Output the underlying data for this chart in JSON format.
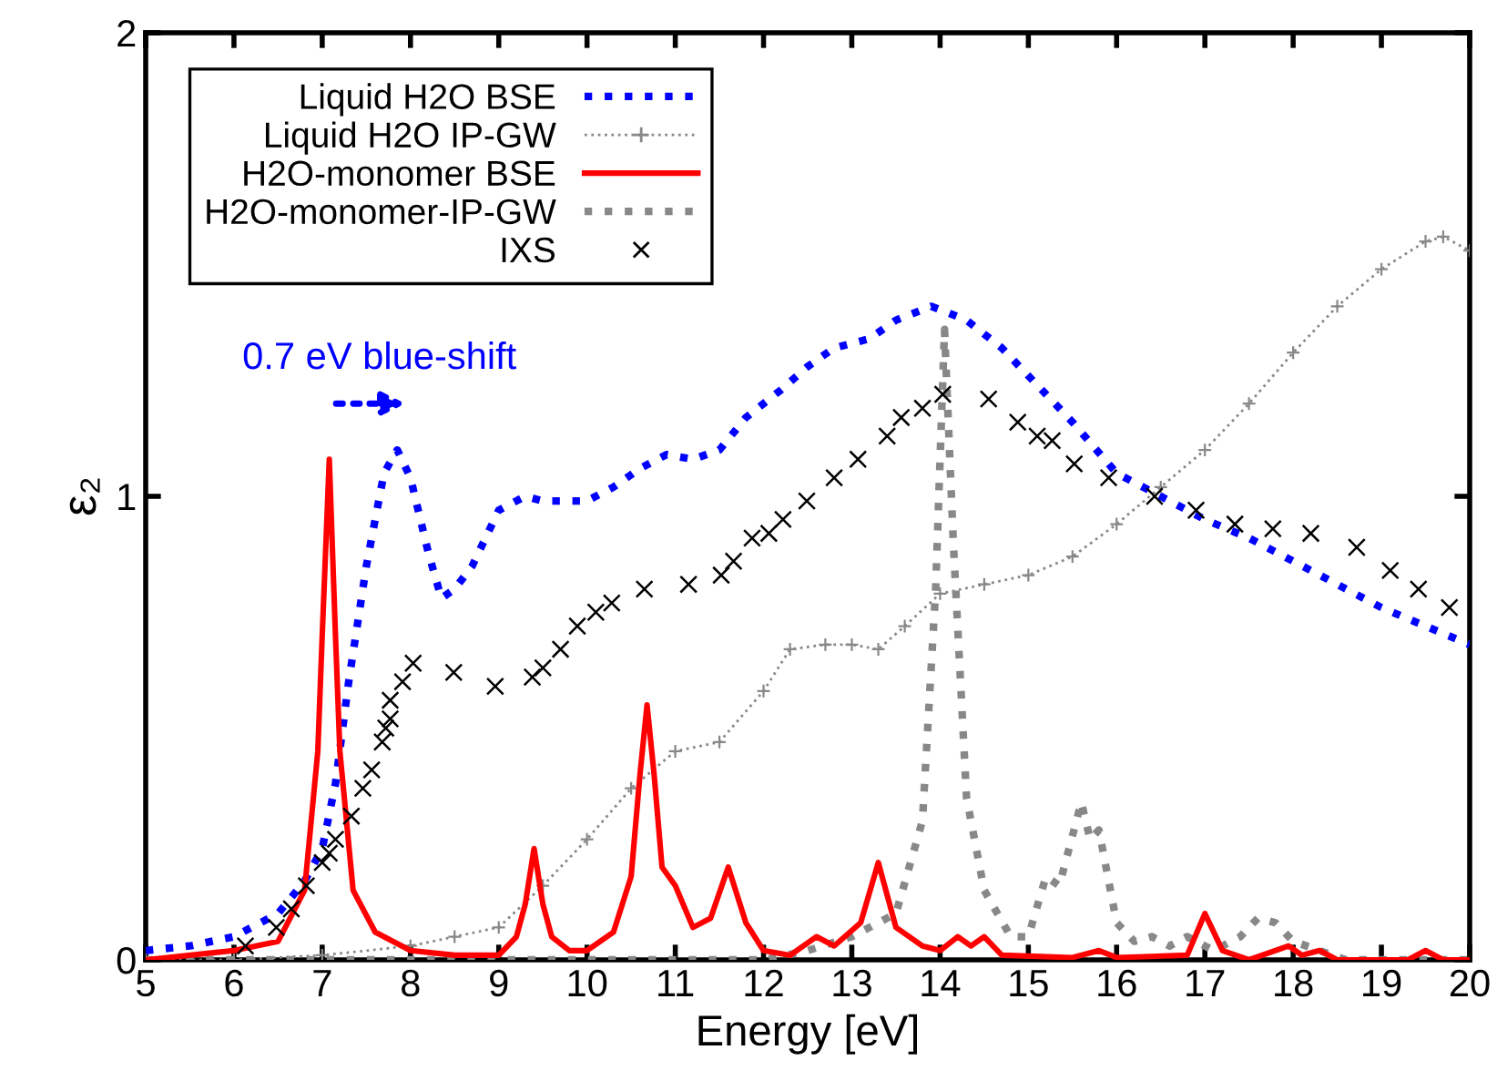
{
  "chart_data": {
    "type": "line",
    "xlabel": "Energy [eV]",
    "ylabel": "ε₂",
    "xlim": [
      5,
      20
    ],
    "xticks": [
      5,
      6,
      7,
      8,
      9,
      10,
      11,
      12,
      13,
      14,
      15,
      16,
      17,
      18,
      19,
      20
    ],
    "ylim": [
      0,
      2
    ],
    "yticks": [
      0,
      1,
      2
    ],
    "grid": false,
    "legend": "top left",
    "annotations": [
      "0.7 eV blue-shift"
    ],
    "series": [
      {
        "name": "Liquid H2O BSE",
        "color": "#0000ff",
        "line_style": "dotted",
        "marker": "none",
        "x": [
          5,
          5.5,
          6,
          6.5,
          6.8,
          7,
          7.15,
          7.3,
          7.5,
          7.7,
          7.85,
          8.0,
          8.2,
          8.35,
          8.5,
          8.7,
          9.0,
          9.3,
          9.5,
          10,
          10.3,
          10.6,
          10.9,
          11.2,
          11.5,
          11.8,
          12.2,
          12.5,
          12.8,
          13.2,
          13.5,
          13.9,
          14.3,
          14.7,
          15,
          15.5,
          16,
          16.5,
          17,
          17.5,
          18,
          18.5,
          19,
          19.5,
          20
        ],
        "values": [
          0.02,
          0.03,
          0.05,
          0.1,
          0.17,
          0.24,
          0.38,
          0.6,
          0.85,
          1.05,
          1.1,
          1.04,
          0.88,
          0.78,
          0.8,
          0.85,
          0.97,
          1.0,
          0.99,
          0.99,
          1.02,
          1.06,
          1.09,
          1.08,
          1.1,
          1.17,
          1.23,
          1.28,
          1.32,
          1.34,
          1.38,
          1.41,
          1.38,
          1.32,
          1.26,
          1.16,
          1.05,
          1.0,
          0.95,
          0.91,
          0.86,
          0.81,
          0.76,
          0.72,
          0.68
        ]
      },
      {
        "name": "Liquid H2O IP-GW",
        "color": "#888888",
        "line_style": "dotted",
        "marker": "plus",
        "x": [
          5,
          6,
          7,
          8,
          8.5,
          9,
          9.5,
          10,
          10.5,
          11,
          11.5,
          12,
          12.3,
          12.7,
          13,
          13.3,
          13.6,
          14,
          14.5,
          15,
          15.5,
          16,
          16.5,
          17,
          17.5,
          18,
          18.5,
          19,
          19.5,
          19.7,
          20
        ],
        "values": [
          0.0,
          0.0,
          0.01,
          0.03,
          0.05,
          0.07,
          0.16,
          0.26,
          0.37,
          0.45,
          0.47,
          0.58,
          0.67,
          0.68,
          0.68,
          0.67,
          0.72,
          0.79,
          0.81,
          0.83,
          0.87,
          0.94,
          1.02,
          1.1,
          1.2,
          1.31,
          1.41,
          1.49,
          1.55,
          1.56,
          1.53
        ]
      },
      {
        "name": "H2O-monomer BSE",
        "color": "#ff0000",
        "line_style": "solid",
        "marker": "none",
        "x": [
          5,
          6,
          6.5,
          6.8,
          6.95,
          7.0,
          7.08,
          7.15,
          7.2,
          7.35,
          7.6,
          8,
          8.5,
          9,
          9.2,
          9.3,
          9.4,
          9.5,
          9.6,
          9.8,
          10,
          10.3,
          10.5,
          10.6,
          10.68,
          10.76,
          10.85,
          11.0,
          11.2,
          11.4,
          11.6,
          11.8,
          12.0,
          12.3,
          12.6,
          12.8,
          13.1,
          13.3,
          13.5,
          13.8,
          14.0,
          14.2,
          14.35,
          14.5,
          14.7,
          15.5,
          15.8,
          16.0,
          16.8,
          17.0,
          17.2,
          17.5,
          17.95,
          18.1,
          18.3,
          18.5,
          19.3,
          19.5,
          19.7,
          20
        ],
        "values": [
          0.0,
          0.02,
          0.04,
          0.15,
          0.45,
          0.7,
          1.08,
          0.7,
          0.45,
          0.15,
          0.06,
          0.02,
          0.01,
          0.01,
          0.05,
          0.12,
          0.24,
          0.12,
          0.05,
          0.02,
          0.02,
          0.06,
          0.18,
          0.4,
          0.55,
          0.4,
          0.2,
          0.16,
          0.07,
          0.09,
          0.2,
          0.08,
          0.02,
          0.01,
          0.05,
          0.03,
          0.08,
          0.21,
          0.07,
          0.03,
          0.02,
          0.05,
          0.03,
          0.05,
          0.01,
          0.005,
          0.02,
          0.005,
          0.01,
          0.1,
          0.02,
          0.0,
          0.03,
          0.01,
          0.02,
          0.0,
          0.0,
          0.02,
          0.0,
          0.0
        ]
      },
      {
        "name": "H2O-monomer-IP-GW",
        "color": "#888888",
        "line_style": "dotted",
        "marker": "none",
        "x": [
          5,
          12,
          12.5,
          13,
          13.5,
          13.8,
          13.95,
          14.05,
          14.15,
          14.3,
          14.5,
          14.8,
          15.0,
          15.2,
          15.35,
          15.6,
          15.7,
          15.8,
          16.0,
          16.2,
          16.4,
          16.6,
          16.8,
          17.1,
          17.4,
          17.6,
          17.8,
          18.0,
          18.3,
          18.6,
          20
        ],
        "values": [
          0.0,
          0.0,
          0.02,
          0.05,
          0.1,
          0.3,
          0.8,
          1.36,
          0.9,
          0.35,
          0.15,
          0.05,
          0.05,
          0.18,
          0.16,
          0.34,
          0.26,
          0.28,
          0.08,
          0.04,
          0.05,
          0.03,
          0.05,
          0.02,
          0.05,
          0.09,
          0.08,
          0.04,
          0.02,
          0.0,
          0.0
        ]
      },
      {
        "name": "IXS",
        "type": "scatter",
        "color": "#000000",
        "marker": "cross",
        "x": [
          6.13,
          6.48,
          6.65,
          6.82,
          7.0,
          7.08,
          7.15,
          7.33,
          7.46,
          7.56,
          7.68,
          7.72,
          7.77,
          7.77,
          7.91,
          8.03,
          8.49,
          8.96,
          9.38,
          9.5,
          9.7,
          9.89,
          10.1,
          10.28,
          10.65,
          11.15,
          11.52,
          11.66,
          11.87,
          12.06,
          12.22,
          12.49,
          12.8,
          13.07,
          13.4,
          13.56,
          13.8,
          14.03,
          14.55,
          14.88,
          15.1,
          15.27,
          15.52,
          15.91,
          16.43,
          16.9,
          17.34,
          17.77,
          18.2,
          18.72,
          19.1,
          19.42,
          19.77
        ],
        "values": [
          0.03,
          0.07,
          0.11,
          0.16,
          0.21,
          0.23,
          0.26,
          0.31,
          0.37,
          0.41,
          0.47,
          0.5,
          0.52,
          0.56,
          0.6,
          0.64,
          0.62,
          0.59,
          0.61,
          0.63,
          0.67,
          0.72,
          0.75,
          0.77,
          0.8,
          0.81,
          0.83,
          0.86,
          0.91,
          0.92,
          0.95,
          0.99,
          1.04,
          1.08,
          1.13,
          1.17,
          1.19,
          1.22,
          1.21,
          1.16,
          1.13,
          1.12,
          1.07,
          1.04,
          1.0,
          0.97,
          0.94,
          0.93,
          0.92,
          0.89,
          0.84,
          0.8,
          0.76
        ]
      }
    ]
  }
}
